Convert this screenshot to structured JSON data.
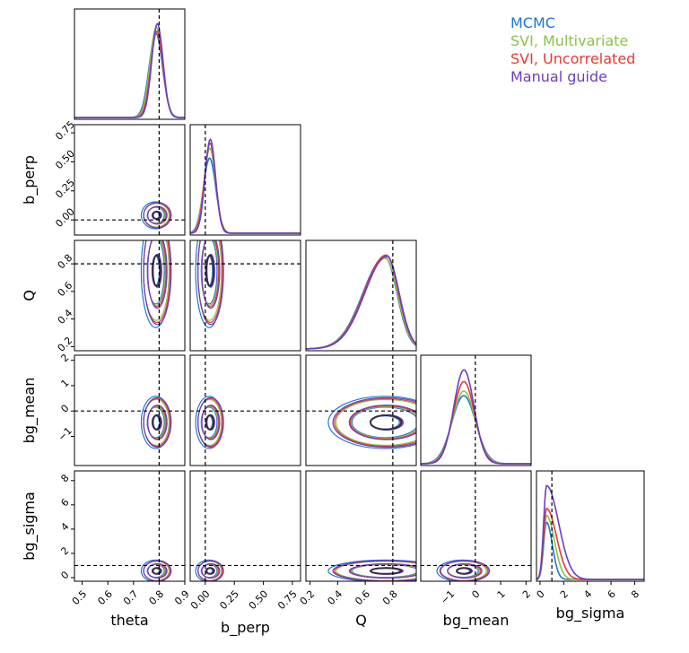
{
  "legend": {
    "placement": "top-right",
    "entries": [
      {
        "name": "MCMC",
        "color": "#1f77d4"
      },
      {
        "name": "SVI, Multivariate",
        "color": "#8bc34a"
      },
      {
        "name": "SVI, Uncorrelated",
        "color": "#e53935"
      },
      {
        "name": "Manual guide",
        "color": "#6a3fbf"
      }
    ]
  },
  "chart_data": {
    "type": "corner",
    "parameters": [
      "theta",
      "b_perp",
      "Q",
      "bg_mean",
      "bg_sigma"
    ],
    "truths": {
      "theta": 0.8,
      "b_perp": 0.0,
      "Q": 0.8,
      "bg_mean": 0.0,
      "bg_sigma": 1.0
    },
    "ranges": {
      "theta": [
        0.47,
        0.9
      ],
      "b_perp": [
        -0.13,
        0.82
      ],
      "Q": [
        0.17,
        0.97
      ],
      "bg_mean": [
        -2.15,
        2.2
      ],
      "bg_sigma": [
        -0.3,
        8.8
      ]
    },
    "ticks": {
      "theta": {
        "values": [
          0.5,
          0.6,
          0.7,
          0.8,
          0.9
        ],
        "labels": [
          "0.5",
          "0.6",
          "0.7",
          "0.8",
          "0.9"
        ]
      },
      "b_perp": {
        "values": [
          0.0,
          0.25,
          0.5,
          0.75
        ],
        "labels": [
          "0.00",
          "0.25",
          "0.50",
          "0.75"
        ]
      },
      "Q": {
        "values": [
          0.2,
          0.4,
          0.6,
          0.8
        ],
        "labels": [
          "0.2",
          "0.4",
          "0.6",
          "0.8"
        ]
      },
      "bg_mean": {
        "values": [
          -1,
          0,
          1,
          2
        ],
        "labels": [
          "−1",
          "0",
          "1",
          "2"
        ]
      },
      "bg_sigma": {
        "values": [
          0,
          2,
          4,
          6,
          8
        ],
        "labels": [
          "0",
          "2",
          "4",
          "6",
          "8"
        ]
      }
    },
    "marginals": {
      "theta": {
        "mode": 0.79,
        "sd": 0.022,
        "heights": [
          0.9,
          0.96,
          0.92,
          1.0
        ]
      },
      "b_perp": {
        "mode": 0.04,
        "sd": 0.045,
        "heights": [
          0.6,
          0.68,
          0.72,
          0.75
        ]
      },
      "Q": {
        "mode": 0.75,
        "sd": 0.16,
        "heights": [
          0.86,
          0.85,
          0.88,
          0.87
        ]
      },
      "bg_mean": {
        "mode": -0.45,
        "sd": 0.4,
        "heights": [
          1.45,
          1.55,
          1.75,
          2.0
        ]
      },
      "bg_sigma": {
        "mode": 0.55,
        "sd": 0.35,
        "heights": [
          5.0,
          5.6,
          6.2,
          8.2
        ]
      }
    },
    "grid": false,
    "xlabel_bottom": [
      "theta",
      "b_perp",
      "Q",
      "bg_mean",
      "bg_sigma"
    ],
    "ylabel_left": [
      "b_perp",
      "Q",
      "bg_mean",
      "bg_sigma"
    ]
  }
}
